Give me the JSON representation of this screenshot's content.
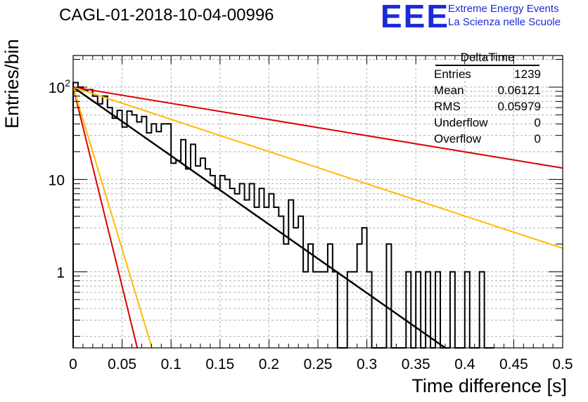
{
  "title": "CAGL-01-2018-10-04-00996",
  "logo": {
    "mark": "EEE",
    "line1": "Extreme Energy Events",
    "line2": "La Scienza nelle Scuole"
  },
  "stats_box": {
    "name": "DeltaTime",
    "rows": [
      {
        "label": "Entries",
        "value": "1239"
      },
      {
        "label": "Mean",
        "value": "0.06121"
      },
      {
        "label": "RMS",
        "value": "0.05979"
      },
      {
        "label": "Underflow",
        "value": "0"
      },
      {
        "label": "Overflow",
        "value": "0"
      }
    ]
  },
  "colors": {
    "histogram": "#000000",
    "fit": "#000000",
    "red_lines": "#dd0000",
    "orange_lines": "#ffbb00",
    "grid": "#b0b0b0",
    "logo": "#1a2cd8"
  },
  "chart_data": {
    "type": "line",
    "xlabel": "Time difference [s]",
    "ylabel": "Entries/bin",
    "xlim": [
      0,
      0.5
    ],
    "ylim": [
      0.15,
      220
    ],
    "yscale": "log",
    "grid": true,
    "x_ticks": [
      "0",
      "0.05",
      "0.1",
      "0.15",
      "0.2",
      "0.25",
      "0.3",
      "0.35",
      "0.4",
      "0.45",
      "0.5"
    ],
    "y_ticks": [
      {
        "value": 1,
        "label": "1"
      },
      {
        "value": 10,
        "label": "10"
      },
      {
        "value": 100,
        "label": "10^2"
      }
    ],
    "histogram": {
      "bin_width": 0.005,
      "x_start": 0,
      "counts": [
        112,
        100,
        92,
        94,
        80,
        66,
        80,
        60,
        46,
        56,
        37,
        55,
        50,
        42,
        48,
        32,
        40,
        33,
        40,
        40,
        15,
        16,
        27,
        13,
        24,
        14,
        17,
        13,
        11,
        8,
        11,
        10,
        8,
        7,
        9,
        6,
        9,
        5,
        8,
        5,
        7,
        5,
        4,
        2,
        6,
        3,
        4,
        1,
        2,
        1,
        1,
        1,
        2,
        1,
        0,
        0,
        1,
        1,
        2,
        3,
        1,
        0,
        0,
        0,
        2,
        0,
        0,
        0,
        1,
        0,
        1,
        0,
        1,
        0,
        1,
        0,
        0,
        1,
        0,
        0,
        1,
        0,
        0,
        1,
        0,
        0
      ]
    },
    "lines": [
      {
        "role": "fit",
        "color": "#000000",
        "x": [
          0,
          0.38
        ],
        "y": [
          100,
          0.15
        ]
      },
      {
        "role": "limit",
        "color": "#dd0000",
        "x": [
          0,
          0.5
        ],
        "y": [
          100,
          13.3
        ]
      },
      {
        "role": "limit",
        "color": "#ffbb00",
        "x": [
          0,
          0.5
        ],
        "y": [
          100,
          1.8
        ]
      },
      {
        "role": "limit",
        "color": "#dd0000",
        "x": [
          0,
          0.0655
        ],
        "y": [
          100,
          0.15
        ]
      },
      {
        "role": "limit",
        "color": "#ffbb00",
        "x": [
          0,
          0.0805
        ],
        "y": [
          100,
          0.15
        ]
      }
    ]
  }
}
